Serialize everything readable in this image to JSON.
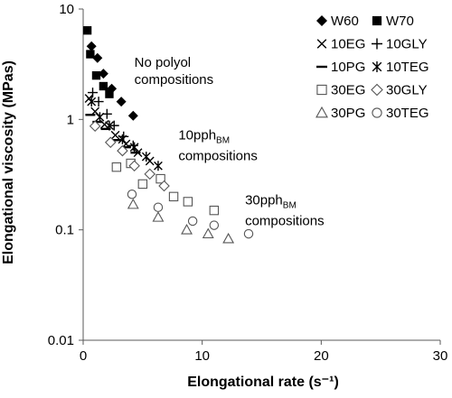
{
  "chart_data": {
    "type": "scatter",
    "xlabel": "Elongational rate (s⁻¹)",
    "ylabel": "Elongational viscosity (MPas)",
    "xlim": [
      0,
      30
    ],
    "ylim": [
      0.01,
      10
    ],
    "yscale": "log",
    "x_ticks": [
      "0",
      "10",
      "20",
      "30"
    ],
    "y_ticks": [
      "0.01",
      "0.1",
      "1",
      "10"
    ],
    "grid": false,
    "legend_placement": "top-right",
    "legend_columns": 2,
    "annotations": [
      {
        "lines": [
          {
            "text": "No polyol"
          },
          {
            "text": "compositions"
          }
        ],
        "x": 4.3,
        "y": 3.0
      },
      {
        "lines": [
          {
            "text": "10pph",
            "sub": "BM"
          },
          {
            "text": "compositions"
          }
        ],
        "x": 8.0,
        "y": 0.66
      },
      {
        "lines": [
          {
            "text": "30pph",
            "sub": "BM"
          },
          {
            "text": "compositions"
          }
        ],
        "x": 13.6,
        "y": 0.17
      }
    ],
    "series": [
      {
        "name": "W60",
        "marker": "diamond-filled",
        "points": [
          [
            0.7,
            4.6
          ],
          [
            1.2,
            3.6
          ],
          [
            1.7,
            2.6
          ],
          [
            2.4,
            1.9
          ],
          [
            3.2,
            1.45
          ],
          [
            4.2,
            1.08
          ]
        ]
      },
      {
        "name": "W70",
        "marker": "square-filled",
        "points": [
          [
            0.35,
            6.4
          ],
          [
            0.6,
            3.9
          ],
          [
            1.1,
            2.5
          ],
          [
            1.7,
            2.0
          ],
          [
            2.2,
            1.7
          ]
        ]
      },
      {
        "name": "10EG",
        "marker": "x",
        "points": [
          [
            0.5,
            1.55
          ],
          [
            1.0,
            1.18
          ],
          [
            1.8,
            0.9
          ],
          [
            2.7,
            0.72
          ],
          [
            3.6,
            0.6
          ],
          [
            4.6,
            0.5
          ],
          [
            5.6,
            0.42
          ]
        ]
      },
      {
        "name": "10GLY",
        "marker": "plus",
        "points": [
          [
            0.8,
            1.75
          ],
          [
            1.3,
            1.45
          ],
          [
            2.0,
            1.12
          ],
          [
            2.6,
            0.88
          ],
          [
            3.4,
            0.7
          ],
          [
            4.2,
            0.58
          ]
        ]
      },
      {
        "name": "10PG",
        "marker": "dash",
        "points": [
          [
            0.6,
            1.1
          ],
          [
            1.2,
            0.95
          ],
          [
            1.9,
            0.82
          ],
          [
            2.8,
            0.65
          ],
          [
            3.6,
            0.56
          ],
          [
            4.4,
            0.5
          ]
        ]
      },
      {
        "name": "10TEG",
        "marker": "asterisk",
        "points": [
          [
            0.7,
            1.45
          ],
          [
            1.4,
            1.05
          ],
          [
            2.2,
            0.88
          ],
          [
            3.3,
            0.66
          ],
          [
            4.3,
            0.56
          ],
          [
            5.3,
            0.46
          ],
          [
            6.3,
            0.38
          ]
        ]
      },
      {
        "name": "30EG",
        "marker": "square-open",
        "points": [
          [
            2.8,
            0.37
          ],
          [
            4.0,
            0.4
          ],
          [
            5.0,
            0.26
          ],
          [
            6.5,
            0.29
          ],
          [
            7.6,
            0.2
          ],
          [
            8.8,
            0.18
          ],
          [
            11.0,
            0.15
          ]
        ]
      },
      {
        "name": "30GLY",
        "marker": "diamond-open",
        "points": [
          [
            1.0,
            0.87
          ],
          [
            2.3,
            0.62
          ],
          [
            3.3,
            0.52
          ],
          [
            4.3,
            0.38
          ],
          [
            5.6,
            0.32
          ],
          [
            6.8,
            0.25
          ]
        ]
      },
      {
        "name": "30PG",
        "marker": "triangle-open",
        "points": [
          [
            4.2,
            0.17
          ],
          [
            6.3,
            0.13
          ],
          [
            8.7,
            0.1
          ],
          [
            10.5,
            0.092
          ],
          [
            12.2,
            0.083
          ]
        ]
      },
      {
        "name": "30TEG",
        "marker": "circle-open",
        "points": [
          [
            4.1,
            0.21
          ],
          [
            6.3,
            0.16
          ],
          [
            9.2,
            0.12
          ],
          [
            11.0,
            0.11
          ],
          [
            13.9,
            0.092
          ]
        ]
      }
    ]
  }
}
